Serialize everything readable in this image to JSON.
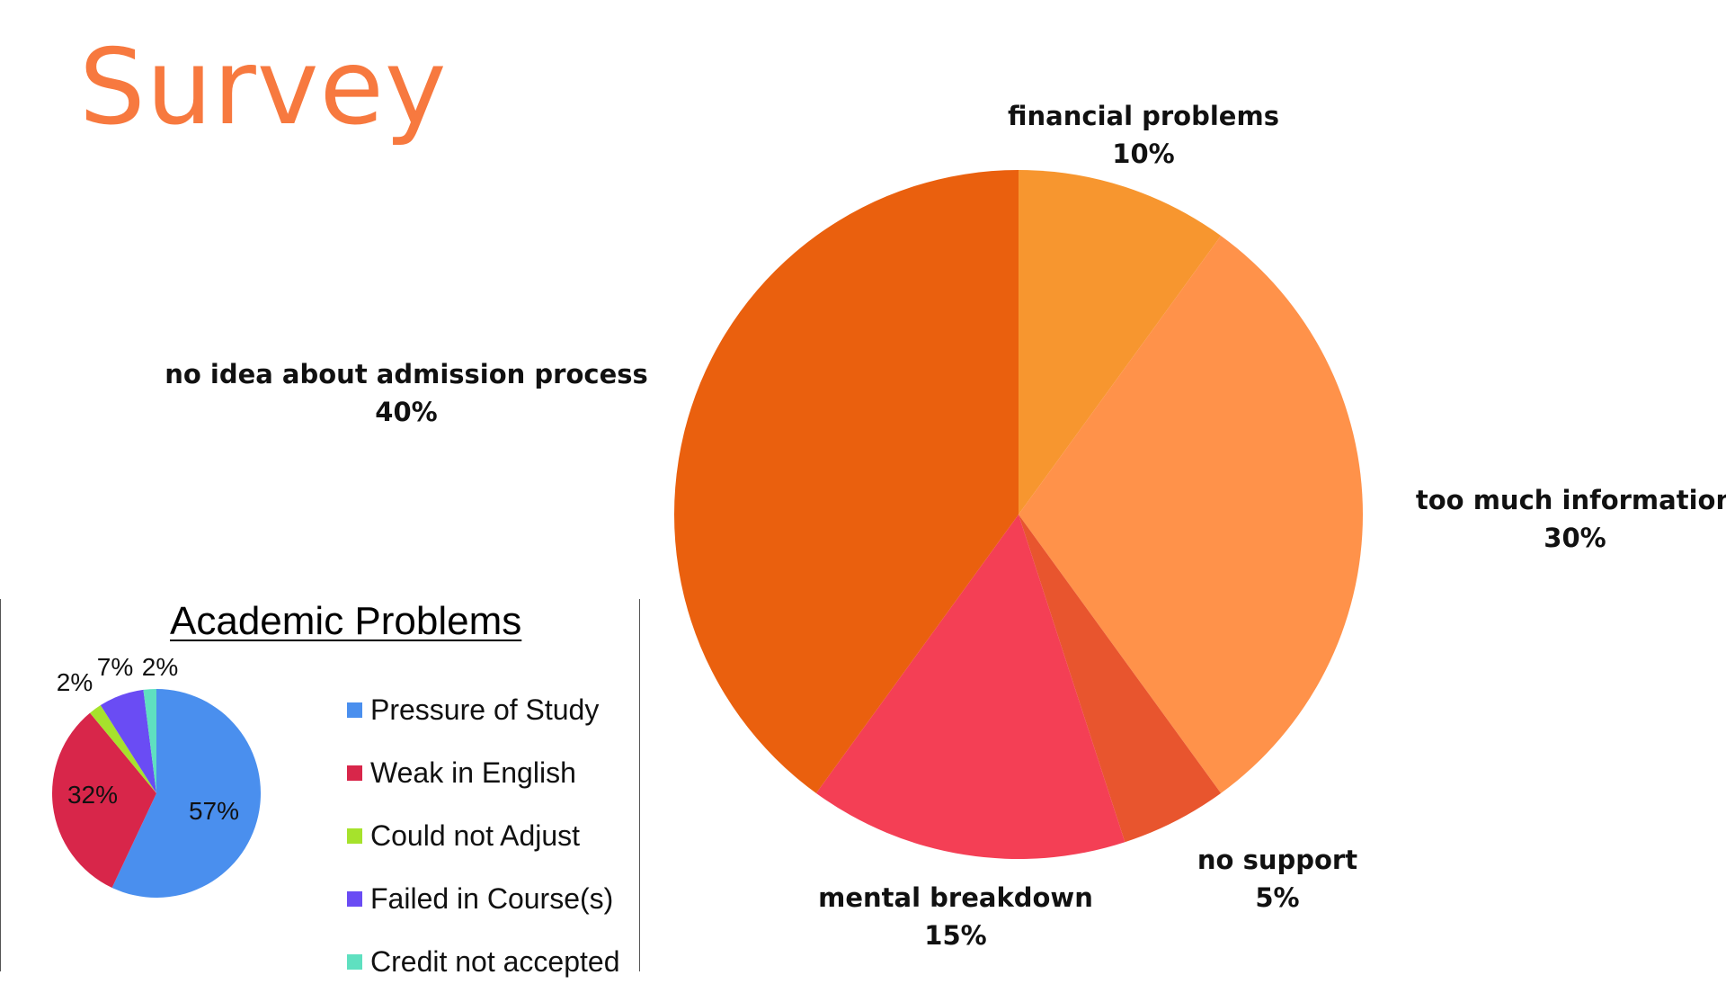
{
  "page": {
    "title": "Survey"
  },
  "chart_data": [
    {
      "type": "pie",
      "title": "",
      "slices": [
        {
          "label": "financial problems",
          "value": 10,
          "value_label": "10%",
          "color": "#f7962f"
        },
        {
          "label": "too much information",
          "value": 30,
          "value_label": "30%",
          "color": "#ff924a"
        },
        {
          "label": "no support",
          "value": 5,
          "value_label": "5%",
          "color": "#e8552e"
        },
        {
          "label": "mental breakdown",
          "value": 15,
          "value_label": "15%",
          "color": "#f43f55"
        },
        {
          "label": "no idea about admission process",
          "value": 40,
          "value_label": "40%",
          "color": "#ea600e"
        }
      ],
      "start_angle_deg": 0,
      "direction": "clockwise",
      "legend": "none"
    },
    {
      "type": "pie",
      "title": "Academic Problems",
      "slices": [
        {
          "label": "Pressure of Study",
          "value": 57,
          "value_label": "57%",
          "color": "#4a8fee"
        },
        {
          "label": "Weak in English",
          "value": 32,
          "value_label": "32%",
          "color": "#d8264a"
        },
        {
          "label": "Could not Adjust",
          "value": 2,
          "value_label": "2%",
          "color": "#a6e22c"
        },
        {
          "label": "Failed in Course(s)",
          "value": 7,
          "value_label": "7%",
          "color": "#6a4cf4"
        },
        {
          "label": "Credit not accepted",
          "value": 2,
          "value_label": "2%",
          "color": "#5fe0c0"
        }
      ],
      "start_angle_deg": 0,
      "direction": "clockwise",
      "legend": "right"
    }
  ]
}
